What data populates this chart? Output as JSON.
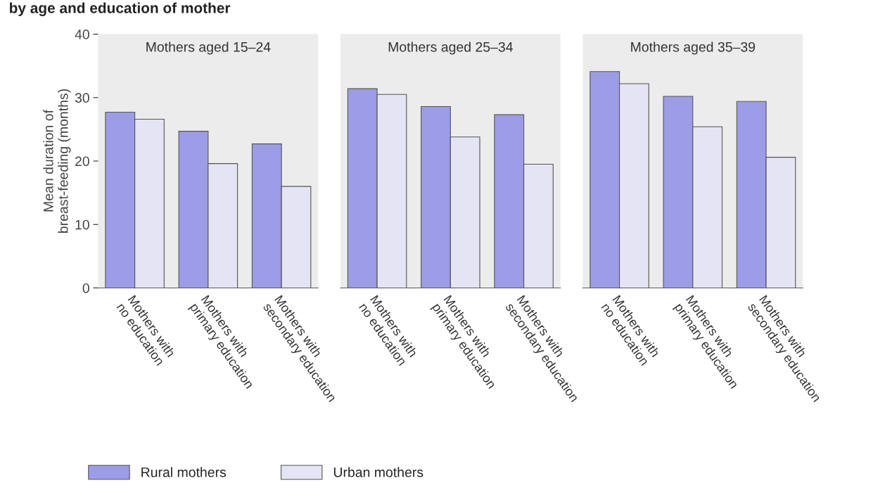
{
  "chart_data": [
    {
      "type": "bar",
      "title": "Mothers aged 15–24",
      "ylabel": "Mean duration of\nbreast-feeding (months)",
      "annotations": [
        "by age and education of mother"
      ],
      "categories": [
        "Mothers with\nno education",
        "Mothers with\nprimary education",
        "Mothers with\nsecondary education"
      ],
      "ylim": [
        0,
        40
      ],
      "yticks": [
        0,
        10,
        20,
        30,
        40
      ],
      "legend": "bottom",
      "grid": false,
      "series": [
        {
          "name": "Rural mothers",
          "color": "#9d9ce6",
          "values": [
            27.7,
            24.7,
            22.7
          ]
        },
        {
          "name": "Urban mothers",
          "color": "#e4e4f4",
          "values": [
            26.6,
            19.6,
            16.0
          ]
        }
      ]
    },
    {
      "type": "bar",
      "title": "Mothers aged 25–34",
      "categories": [
        "Mothers with\nno education",
        "Mothers with\nprimary education",
        "Mothers with\nsecondary education"
      ],
      "ylim": [
        0,
        40
      ],
      "tick_labels": "x",
      "grid": false,
      "series": [
        {
          "color": "#9d9ce6",
          "values": [
            31.4,
            28.6,
            27.3
          ]
        },
        {
          "color": "#e4e4f4",
          "values": [
            30.5,
            23.8,
            19.5
          ]
        }
      ]
    },
    {
      "type": "bar",
      "title": "Mothers aged 35–39",
      "categories": [
        "Mothers with\nno education",
        "Mothers with\nprimary education",
        "Mothers with\nsecondary education"
      ],
      "ylim": [
        0,
        40
      ],
      "tick_labels": "x",
      "grid": false,
      "series": [
        {
          "color": "#9d9ce6",
          "values": [
            34.1,
            30.2,
            29.4
          ]
        },
        {
          "color": "#e4e4f4",
          "values": [
            32.2,
            25.4,
            20.6
          ]
        }
      ]
    }
  ]
}
